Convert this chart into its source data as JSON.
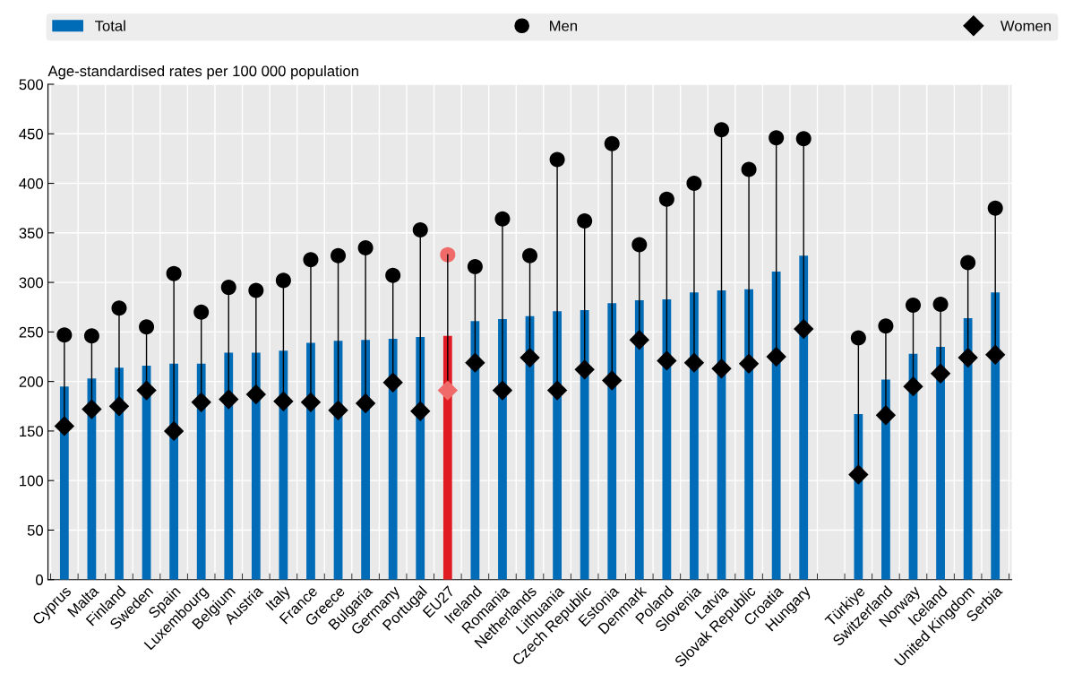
{
  "chart_data": {
    "type": "bar",
    "ylabel": "Age-standardised rates per 100 000 population",
    "categories": [
      "Cyprus",
      "Malta",
      "Finland",
      "Sweden",
      "Spain",
      "Luxembourg",
      "Belgium",
      "Austria",
      "Italy",
      "France",
      "Greece",
      "Bulgaria",
      "Germany",
      "Portugal",
      "EU27",
      "Ireland",
      "Romania",
      "Netherlands",
      "Lithuania",
      "Czech Republic",
      "Estonia",
      "Denmark",
      "Poland",
      "Slovenia",
      "Latvia",
      "Slovak Republic",
      "Croatia",
      "Hungary",
      null,
      "Türkiye",
      "Switzerland",
      "Norway",
      "Iceland",
      "United Kingdom",
      "Serbia"
    ],
    "series": [
      {
        "name": "Total",
        "type": "bar",
        "color": "#006bb6",
        "colors": [
          "#006bb6",
          "#006bb6",
          "#006bb6",
          "#006bb6",
          "#006bb6",
          "#006bb6",
          "#006bb6",
          "#006bb6",
          "#006bb6",
          "#006bb6",
          "#006bb6",
          "#006bb6",
          "#006bb6",
          "#006bb6",
          "#e01b22",
          "#006bb6",
          "#006bb6",
          "#006bb6",
          "#006bb6",
          "#006bb6",
          "#006bb6",
          "#006bb6",
          "#006bb6",
          "#006bb6",
          "#006bb6",
          "#006bb6",
          "#006bb6",
          "#006bb6",
          "#006bb6",
          "#006bb6",
          "#006bb6",
          "#006bb6",
          "#006bb6",
          "#006bb6",
          "#006bb6"
        ],
        "values": [
          195,
          203,
          214,
          216,
          218,
          218,
          229,
          229,
          231,
          239,
          241,
          242,
          243,
          245,
          246,
          261,
          263,
          266,
          271,
          272,
          279,
          282,
          283,
          290,
          292,
          293,
          311,
          327,
          null,
          167,
          202,
          228,
          235,
          264,
          290
        ]
      },
      {
        "name": "Men",
        "type": "scatter",
        "marker": "circle",
        "color": "#000000",
        "colors": [
          "#000000",
          "#000000",
          "#000000",
          "#000000",
          "#000000",
          "#000000",
          "#000000",
          "#000000",
          "#000000",
          "#000000",
          "#000000",
          "#000000",
          "#000000",
          "#000000",
          "#f06a6a",
          "#000000",
          "#000000",
          "#000000",
          "#000000",
          "#000000",
          "#000000",
          "#000000",
          "#000000",
          "#000000",
          "#000000",
          "#000000",
          "#000000",
          "#000000",
          "#000000",
          "#000000",
          "#000000",
          "#000000",
          "#000000",
          "#000000",
          "#000000"
        ],
        "values": [
          247,
          246,
          274,
          255,
          309,
          270,
          295,
          292,
          302,
          323,
          327,
          335,
          307,
          353,
          328,
          316,
          364,
          327,
          424,
          362,
          440,
          338,
          384,
          400,
          454,
          414,
          446,
          445,
          null,
          244,
          256,
          277,
          278,
          320,
          375
        ]
      },
      {
        "name": "Women",
        "type": "scatter",
        "marker": "diamond",
        "color": "#000000",
        "colors": [
          "#000000",
          "#000000",
          "#000000",
          "#000000",
          "#000000",
          "#000000",
          "#000000",
          "#000000",
          "#000000",
          "#000000",
          "#000000",
          "#000000",
          "#000000",
          "#000000",
          "#f06a6a",
          "#000000",
          "#000000",
          "#000000",
          "#000000",
          "#000000",
          "#000000",
          "#000000",
          "#000000",
          "#000000",
          "#000000",
          "#000000",
          "#000000",
          "#000000",
          "#000000",
          "#000000",
          "#000000",
          "#000000",
          "#000000",
          "#000000",
          "#000000"
        ],
        "values": [
          155,
          172,
          175,
          191,
          150,
          179,
          182,
          187,
          180,
          179,
          171,
          178,
          199,
          170,
          191,
          219,
          191,
          224,
          191,
          212,
          201,
          242,
          221,
          219,
          213,
          218,
          225,
          253,
          null,
          106,
          166,
          195,
          208,
          224,
          227
        ]
      }
    ],
    "ylim": [
      0,
      500
    ],
    "yticks": [
      0,
      50,
      100,
      150,
      200,
      250,
      300,
      350,
      400,
      450,
      500
    ],
    "grid": true,
    "legend": "top"
  }
}
